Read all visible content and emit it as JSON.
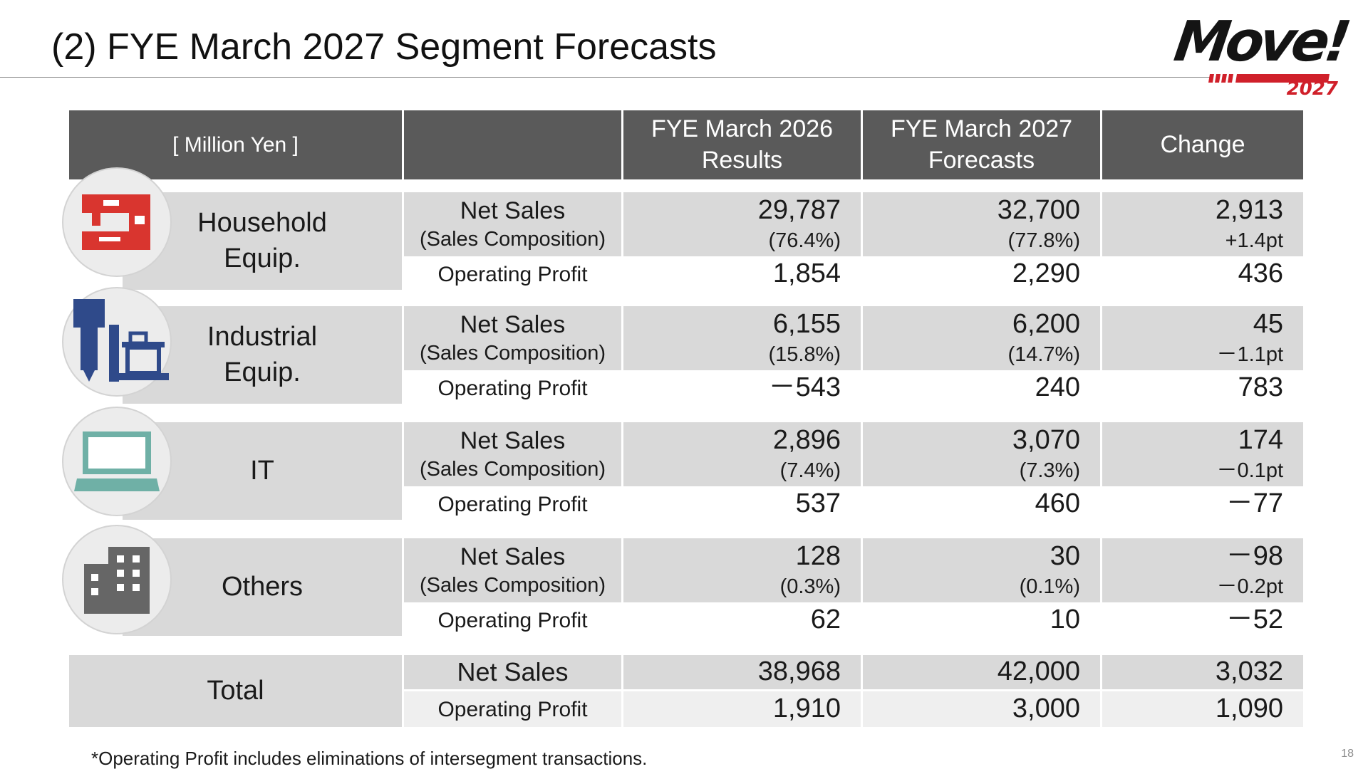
{
  "title": "(2) FYE March 2027 Segment Forecasts",
  "logo": {
    "word": "Move!",
    "year": "2027",
    "brand_color": "#d0202a"
  },
  "page_number": "18",
  "footnote": "*Operating Profit includes eliminations of intersegment transactions.",
  "header": {
    "unit": "[ Million Yen ]",
    "col2026": [
      "FYE March 2026",
      "Results"
    ],
    "col2027": [
      "FYE March 2027",
      "Forecasts"
    ],
    "change": "Change"
  },
  "labels": {
    "net_sales": "Net Sales",
    "composition": "(Sales Composition)",
    "operating_profit": "Operating Profit"
  },
  "segments": [
    {
      "name": [
        "Household",
        "Equip."
      ],
      "icon": "sewing-machine-icon",
      "net_sales": {
        "fy2026": "29,787",
        "fy2027": "32,700",
        "change": "2,913"
      },
      "composition": {
        "fy2026": "(76.4%)",
        "fy2027": "(77.8%)",
        "change": "+1.4pt"
      },
      "operating_profit": {
        "fy2026": "1,854",
        "fy2027": "2,290",
        "change": "436"
      }
    },
    {
      "name": [
        "Industrial",
        "Equip."
      ],
      "icon": "industrial-robot-icon",
      "net_sales": {
        "fy2026": "6,155",
        "fy2027": "6,200",
        "change": "45"
      },
      "composition": {
        "fy2026": "(15.8%)",
        "fy2027": "(14.7%)",
        "change": "－1.1pt"
      },
      "operating_profit": {
        "fy2026": "－543",
        "fy2027": "240",
        "change": "783"
      }
    },
    {
      "name": [
        "IT"
      ],
      "icon": "laptop-icon",
      "net_sales": {
        "fy2026": "2,896",
        "fy2027": "3,070",
        "change": "174"
      },
      "composition": {
        "fy2026": "(7.4%)",
        "fy2027": "(7.3%)",
        "change": "－0.1pt"
      },
      "operating_profit": {
        "fy2026": "537",
        "fy2027": "460",
        "change": "－77"
      }
    },
    {
      "name": [
        "Others"
      ],
      "icon": "building-icon",
      "net_sales": {
        "fy2026": "128",
        "fy2027": "30",
        "change": "－98"
      },
      "composition": {
        "fy2026": "(0.3%)",
        "fy2027": "(0.1%)",
        "change": "－0.2pt"
      },
      "operating_profit": {
        "fy2026": "62",
        "fy2027": "10",
        "change": "－52"
      }
    }
  ],
  "total": {
    "name": "Total",
    "net_sales": {
      "fy2026": "38,968",
      "fy2027": "42,000",
      "change": "3,032"
    },
    "operating_profit": {
      "fy2026": "1,910",
      "fy2027": "3,000",
      "change": "1,090"
    }
  },
  "colors": {
    "header_bg": "#5a5a5a",
    "row_gray": "#d9d9d9",
    "household_icon": "#d9352f",
    "industrial_icon": "#2f4a8a",
    "it_icon": "#6fb0a6",
    "others_icon": "#666666"
  }
}
